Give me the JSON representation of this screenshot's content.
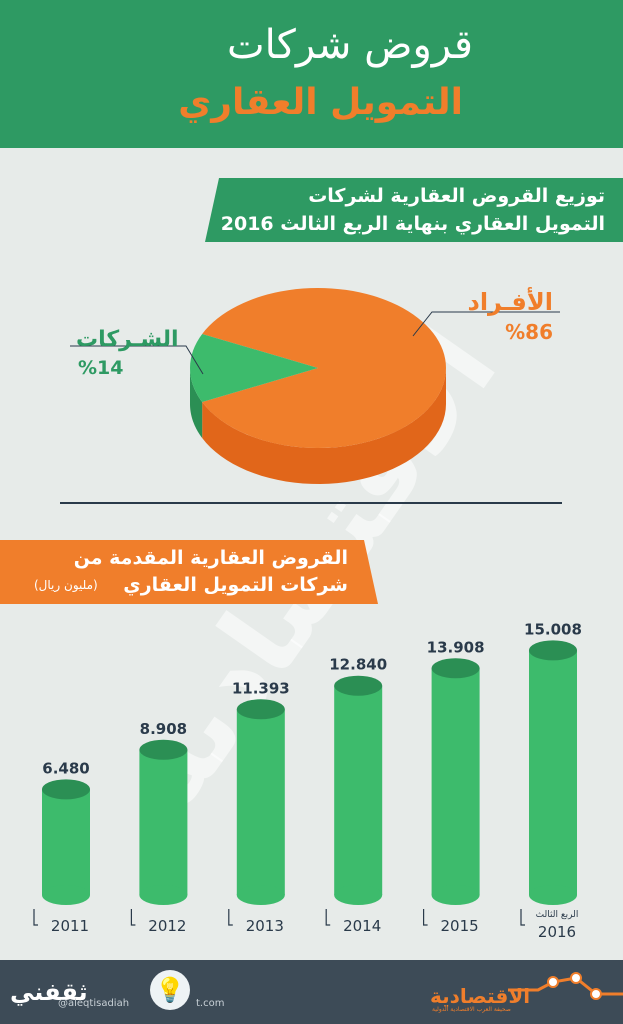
{
  "header": {
    "title_line1": "قروض شركات",
    "title_line2": "التمويل العقاري"
  },
  "section1": {
    "title_line1": "توزيع القروض العقارية لشركات",
    "title_line2": "التمويل العقاري بنهاية الربع الثالث 2016"
  },
  "section2": {
    "title_line1": "القروض العقارية المقدمة من",
    "title_line2": "شركات التمويل العقاري",
    "unit": "(مليون ريال)"
  },
  "pie_labels": {
    "individuals_name": "الأفـراد",
    "individuals_value": "%86",
    "companies_name": "الشـركات",
    "companies_value": "%14"
  },
  "watermark": "الاقتصادية",
  "footer": {
    "left_logo": "ثقفني",
    "handle": "@aleqtisadiah",
    "site": "t.com",
    "right_logo": "الاقتصادية",
    "right_logo_sub": "صحيفة العرب الاقتصادية الدولية"
  },
  "colors": {
    "green": "#2e9a63",
    "green_bar": "#3dbb6c",
    "green_dark": "#2b8f54",
    "orange": "#f07e2b",
    "orange_dark": "#e1661a",
    "footer": "#3d4b57"
  },
  "chart_data": [
    {
      "type": "pie",
      "title": "توزيع القروض العقارية لشركات التمويل العقاري بنهاية الربع الثالث 2016",
      "categories": [
        "الأفـراد",
        "الشـركات"
      ],
      "values": [
        86,
        14
      ],
      "unit": "%"
    },
    {
      "type": "bar",
      "title": "القروض العقارية المقدمة من شركات التمويل العقاري",
      "subtitle": "(مليون ريال)",
      "categories": [
        "2011",
        "2012",
        "2013",
        "2014",
        "2015",
        "2016"
      ],
      "category_notes": [
        "",
        "",
        "",
        "",
        "",
        "الربع الثالث"
      ],
      "values": [
        6.48,
        8.908,
        11.393,
        12.84,
        13.908,
        15.008
      ],
      "value_labels": [
        "6.480",
        "8.908",
        "11.393",
        "12.840",
        "13.908",
        "15.008"
      ]
    }
  ]
}
